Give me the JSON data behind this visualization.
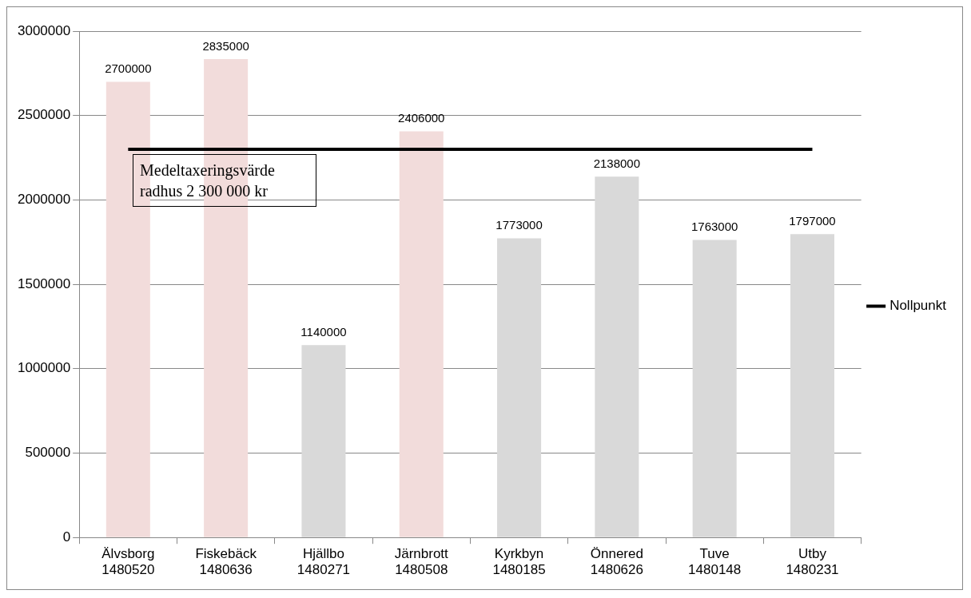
{
  "chart_data": {
    "type": "bar",
    "categories": [
      "Älvsborg 1480520",
      "Fiskebäck 1480636",
      "Hjällbo 1480271",
      "Järnbrott 1480508",
      "Kyrkbyn 1480185",
      "Önnered 1480626",
      "Tuve 1480148",
      "Utby 1480231"
    ],
    "series": [
      {
        "values": [
          2700000,
          2835000,
          1140000,
          2406000,
          1773000,
          2138000,
          1763000,
          1797000
        ],
        "colors": [
          "#f2dcdb",
          "#f2dcdb",
          "#d9d9d9",
          "#f2dcdb",
          "#d9d9d9",
          "#d9d9d9",
          "#d9d9d9",
          "#d9d9d9"
        ],
        "value_labels": [
          "2700000",
          "2835000",
          "1140000",
          "2406000",
          "1773000",
          "2138000",
          "1763000",
          "1797000"
        ]
      },
      {
        "type": "line",
        "name": "Nollpunkt",
        "color": "#000000",
        "values": [
          2300000,
          2300000,
          2300000,
          2300000,
          2300000,
          2300000,
          2300000,
          2300000
        ]
      }
    ],
    "ylim": [
      0,
      3000000
    ],
    "yticks": [
      0,
      500000,
      1000000,
      1500000,
      2000000,
      2500000,
      3000000
    ],
    "grid": "y",
    "legend": "right",
    "marker": "none",
    "line_style": "solid",
    "annotations": [
      "Medeltaxeringsvärde radhus 2 300 000 kr"
    ]
  }
}
